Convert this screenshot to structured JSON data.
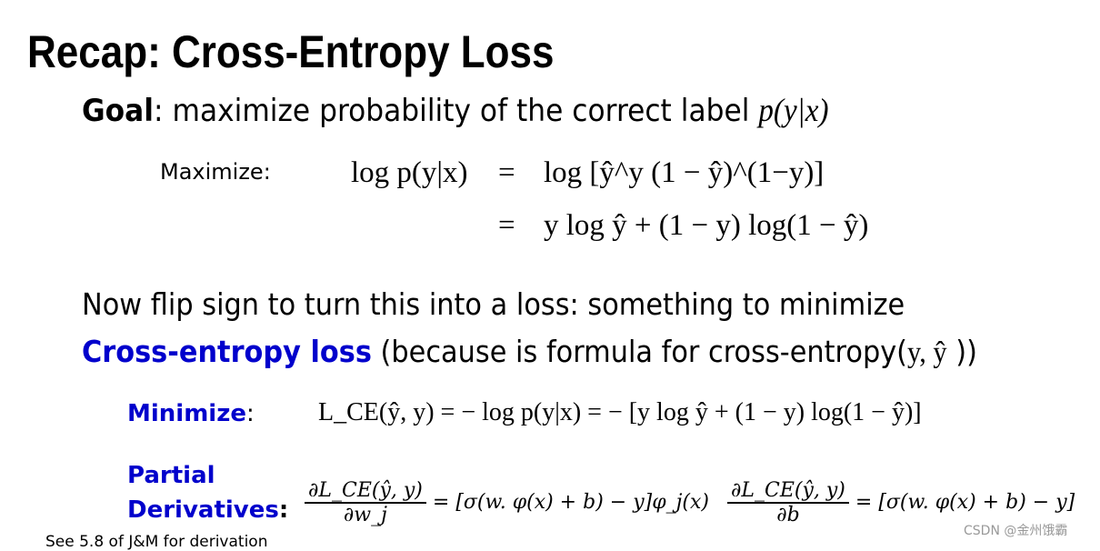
{
  "title": "Recap: Cross-Entropy Loss",
  "goal": {
    "label": "Goal",
    "text": ": maximize probability of the correct label ",
    "math": "p(y|x)"
  },
  "maximize": {
    "label": "Maximize:",
    "lhs": "log p(y|x)",
    "eq1": "=",
    "rhs1": "log [ŷ^y (1 − ŷ)^(1−y)]",
    "eq2": "=",
    "rhs2": "y log ŷ + (1 − y) log(1 − ŷ)"
  },
  "flip": {
    "line1": "Now flip sign to turn this into a loss: something to minimize",
    "blue": "Cross-entropy loss",
    "rest": " (because is formula for cross-entropy(",
    "y": "y, ŷ",
    "close": " ))"
  },
  "minimize": {
    "label": "Minimize",
    "colon": ":",
    "formula": "L_CE(ŷ, y) = − log p(y|x)  =  − [y log ŷ + (1 − y) log(1 − ŷ)]"
  },
  "partial": {
    "label1": "Partial",
    "label2": "Derivatives",
    "colon": ":",
    "d1_num": "∂L_CE(ŷ, y)",
    "d1_den": "∂w_j",
    "d1_rhs": "= [σ(w. φ(x) + b) − y]φ_j(x)",
    "d2_num": "∂L_CE(ŷ, y)",
    "d2_den": "∂b",
    "d2_rhs": "= [σ(w. φ(x) + b) − y]"
  },
  "footnote": "See 5.8 of J&M for derivation",
  "watermark": "CSDN @金州饿霸"
}
